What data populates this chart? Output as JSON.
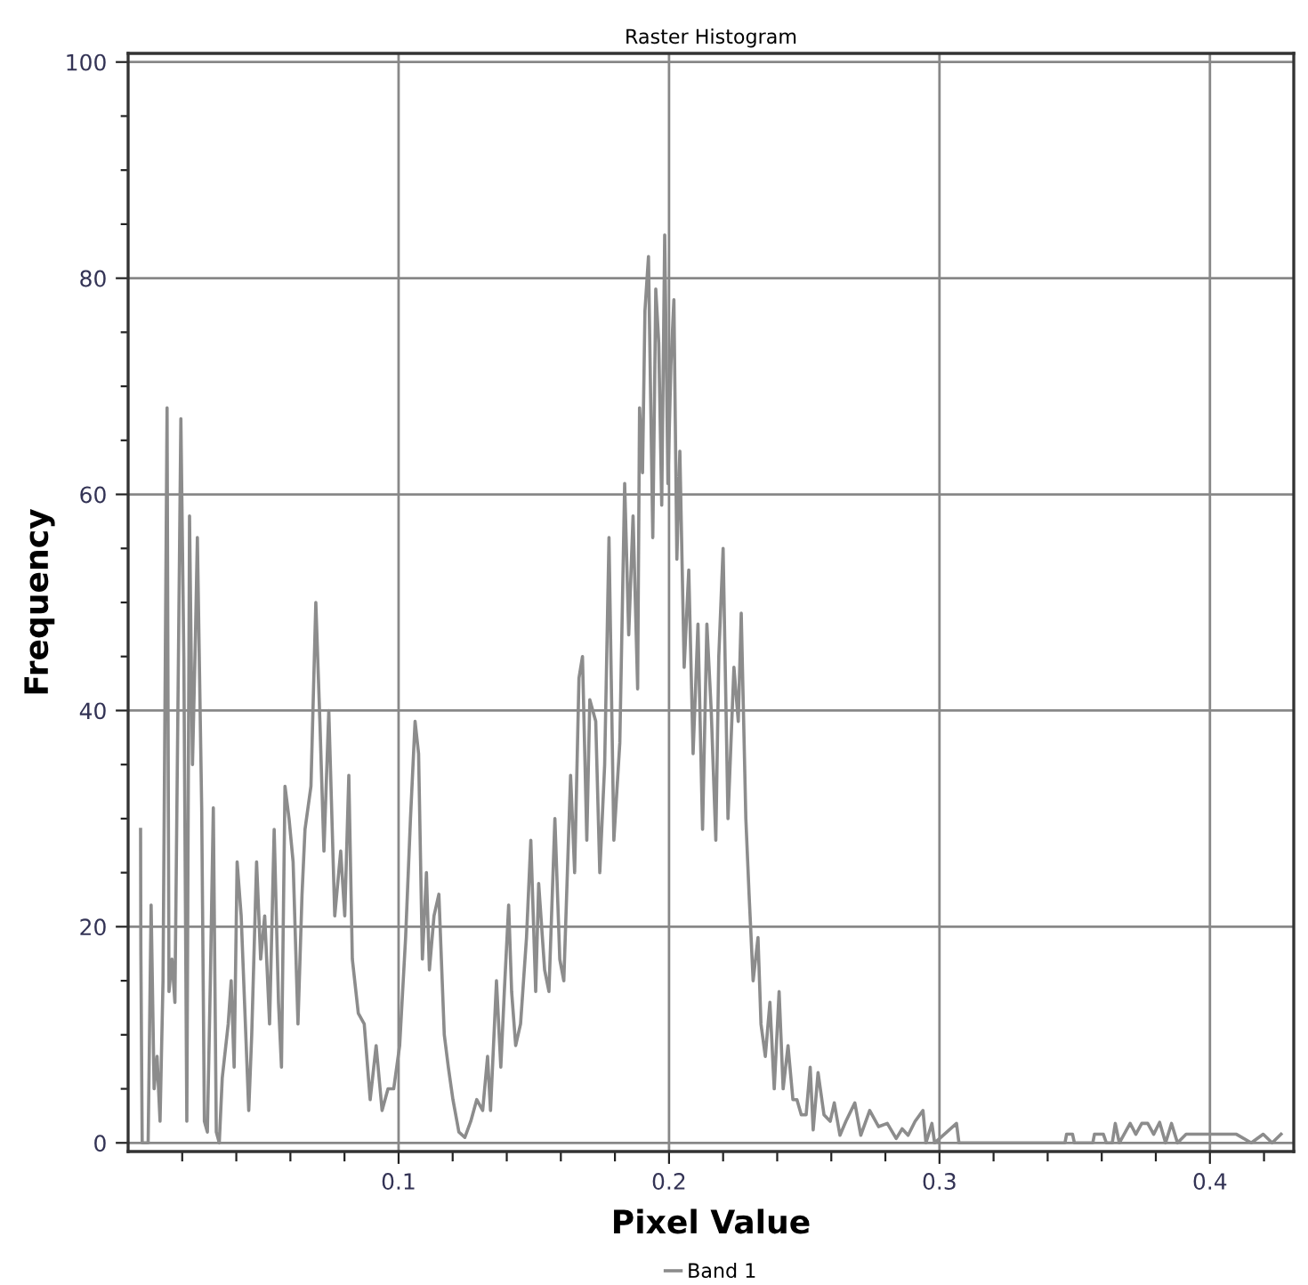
{
  "chart_data": {
    "type": "line",
    "title": "Raster Histogram",
    "xlabel": "Pixel Value",
    "ylabel": "Frequency",
    "xlim": [
      0,
      0.431
    ],
    "ylim": [
      -0.8,
      100.8
    ],
    "xticks": [
      {
        "value": 0.02,
        "label": null
      },
      {
        "value": 0.04,
        "label": null
      },
      {
        "value": 0.06,
        "label": null
      },
      {
        "value": 0.08,
        "label": null
      },
      0.1,
      {
        "value": 0.12,
        "label": null
      },
      {
        "value": 0.14,
        "label": null
      },
      {
        "value": 0.16,
        "label": null
      },
      {
        "value": 0.18,
        "label": null
      },
      0.2,
      {
        "value": 0.22,
        "label": null
      },
      {
        "value": 0.24,
        "label": null
      },
      {
        "value": 0.26,
        "label": null
      },
      {
        "value": 0.28,
        "label": null
      },
      0.3,
      {
        "value": 0.32,
        "label": null
      },
      {
        "value": 0.34,
        "label": null
      },
      {
        "value": 0.36,
        "label": null
      },
      {
        "value": 0.38,
        "label": null
      },
      0.4,
      {
        "value": 0.42,
        "label": null
      }
    ],
    "yticks": [
      0,
      {
        "value": 5,
        "label": null
      },
      {
        "value": 10,
        "label": null
      },
      {
        "value": 15,
        "label": null
      },
      20,
      {
        "value": 25,
        "label": null
      },
      {
        "value": 30,
        "label": null
      },
      {
        "value": 35,
        "label": null
      },
      40,
      {
        "value": 45,
        "label": null
      },
      {
        "value": 50,
        "label": null
      },
      {
        "value": 55,
        "label": null
      },
      60,
      {
        "value": 65,
        "label": null
      },
      {
        "value": 70,
        "label": null
      },
      {
        "value": 75,
        "label": null
      },
      80,
      {
        "value": 85,
        "label": null
      },
      {
        "value": 90,
        "label": null
      },
      {
        "value": 95,
        "label": null
      },
      100
    ],
    "grid": true,
    "legend": "bottom",
    "marker": "none",
    "line_style": "solid",
    "series": [
      {
        "name": "Band 1",
        "color": "#8c8c8c",
        "x": [
          0.0046,
          0.0047,
          0.0052,
          0.0074,
          0.0085,
          0.0096,
          0.0107,
          0.0118,
          0.0129,
          0.0144,
          0.0151,
          0.0162,
          0.0173,
          0.0195,
          0.0206,
          0.0217,
          0.0227,
          0.0238,
          0.0249,
          0.0256,
          0.0272,
          0.0282,
          0.0293,
          0.0304,
          0.0315,
          0.0326,
          0.0337,
          0.0348,
          0.037,
          0.0381,
          0.0392,
          0.0403,
          0.0418,
          0.0446,
          0.0457,
          0.0475,
          0.049,
          0.0505,
          0.0523,
          0.054,
          0.0556,
          0.0567,
          0.058,
          0.0595,
          0.061,
          0.0628,
          0.0643,
          0.0654,
          0.0676,
          0.0694,
          0.0709,
          0.0724,
          0.0742,
          0.0764,
          0.0786,
          0.0801,
          0.0816,
          0.0829,
          0.0851,
          0.0873,
          0.0895,
          0.0917,
          0.0939,
          0.0961,
          0.0982,
          0.1004,
          0.1026,
          0.1044,
          0.1061,
          0.1074,
          0.1088,
          0.1103,
          0.1114,
          0.1131,
          0.1149,
          0.1169,
          0.1184,
          0.1201,
          0.1223,
          0.1245,
          0.1267,
          0.1289,
          0.1311,
          0.1329,
          0.134,
          0.1362,
          0.1378,
          0.1391,
          0.1407,
          0.1418,
          0.1433,
          0.1451,
          0.1473,
          0.1489,
          0.1507,
          0.1518,
          0.154,
          0.1556,
          0.1578,
          0.1596,
          0.1611,
          0.1636,
          0.1651,
          0.1667,
          0.168,
          0.1696,
          0.1707,
          0.1729,
          0.1744,
          0.1762,
          0.1778,
          0.1796,
          0.1818,
          0.1836,
          0.1851,
          0.1867,
          0.1884,
          0.1891,
          0.1902,
          0.1911,
          0.1924,
          0.194,
          0.1951,
          0.1962,
          0.1973,
          0.1984,
          0.1996,
          0.2007,
          0.2018,
          0.2029,
          0.204,
          0.2056,
          0.2073,
          0.2089,
          0.2107,
          0.2124,
          0.214,
          0.2156,
          0.2173,
          0.2184,
          0.22,
          0.2218,
          0.224,
          0.2256,
          0.2267,
          0.2284,
          0.2296,
          0.2311,
          0.2329,
          0.234,
          0.2356,
          0.2373,
          0.2389,
          0.2407,
          0.2422,
          0.244,
          0.2458,
          0.2473,
          0.2489,
          0.2507,
          0.2522,
          0.2533,
          0.2551,
          0.2573,
          0.2596,
          0.2611,
          0.2632,
          0.2654,
          0.2687,
          0.2709,
          0.2742,
          0.2775,
          0.2807,
          0.284,
          0.2862,
          0.2884,
          0.291,
          0.2939,
          0.295,
          0.2972,
          0.2982,
          0.3063,
          0.3072,
          0.3464,
          0.347,
          0.3492,
          0.3499,
          0.3567,
          0.3573,
          0.3606,
          0.3617,
          0.3639,
          0.365,
          0.3665,
          0.3705,
          0.3726,
          0.3748,
          0.377,
          0.3792,
          0.3814,
          0.3836,
          0.3858,
          0.388,
          0.3912,
          0.3945,
          0.4,
          0.4055,
          0.4098,
          0.4153,
          0.4197,
          0.423,
          0.4263
        ],
        "values": [
          29,
          18,
          0,
          0,
          22,
          5,
          8,
          2,
          15,
          68,
          14,
          17,
          13,
          67,
          45,
          2,
          58,
          35,
          47,
          56,
          31,
          2,
          1,
          15,
          31,
          1,
          0,
          6,
          11,
          15,
          7,
          26,
          21,
          3,
          10,
          26,
          17,
          21,
          11,
          29,
          13,
          7,
          33,
          30,
          26,
          11,
          23,
          29,
          33,
          50,
          39,
          27,
          40,
          21,
          27,
          21,
          34,
          17,
          12,
          11,
          4,
          9,
          3,
          5,
          5,
          9,
          19,
          30,
          39,
          36,
          17,
          25,
          16,
          21,
          23,
          10,
          7,
          4,
          1,
          0.5,
          2,
          4,
          3,
          8,
          3,
          15,
          7,
          14,
          22,
          14,
          9,
          11,
          19,
          28,
          14,
          24,
          16,
          14,
          30,
          17,
          15,
          34,
          25,
          43,
          45,
          28,
          41,
          39,
          25,
          35,
          56,
          28,
          37,
          61,
          47,
          58,
          42,
          68,
          62,
          77,
          82,
          56,
          79,
          74,
          59,
          84,
          61,
          72,
          78,
          54,
          64,
          44,
          53,
          36,
          48,
          29,
          48,
          40,
          28,
          45,
          55,
          30,
          44,
          39,
          49,
          30,
          23,
          15,
          19,
          11,
          8,
          13,
          5,
          14,
          5,
          9,
          4,
          4,
          2.6,
          2.6,
          7,
          1.2,
          6.5,
          2.6,
          2,
          3.7,
          0.7,
          2,
          3.7,
          0.7,
          3,
          1.5,
          1.8,
          0.4,
          1.3,
          0.7,
          2,
          3,
          0,
          1.8,
          0,
          1.8,
          0,
          0,
          0.8,
          0.8,
          0,
          0,
          0.8,
          0.8,
          0,
          0,
          1.8,
          0,
          1.8,
          0.8,
          1.8,
          1.8,
          0.8,
          1.9,
          0,
          1.8,
          0,
          0.8,
          0.8,
          0.8,
          0.8,
          0.8,
          0,
          0.8,
          0,
          0.8
        ]
      }
    ]
  }
}
